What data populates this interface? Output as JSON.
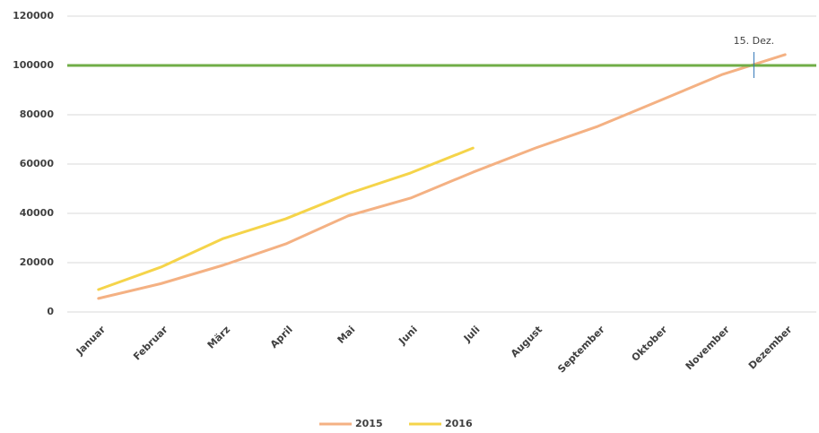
{
  "chart_data": {
    "type": "line",
    "categories": [
      "Januar",
      "Februar",
      "März",
      "April",
      "Mai",
      "Juni",
      "Juli",
      "August",
      "September",
      "Oktober",
      "November",
      "Dezember"
    ],
    "series": [
      {
        "name": "2015",
        "color": "#f4b183",
        "values": [
          5500,
          11500,
          19000,
          27600,
          39000,
          46200,
          56700,
          66500,
          75300,
          85800,
          96400,
          104400
        ]
      },
      {
        "name": "2016",
        "color": "#f5d44a",
        "values": [
          9100,
          18200,
          29800,
          37800,
          48000,
          56400,
          66500,
          null,
          null,
          null,
          null,
          null
        ]
      }
    ],
    "reference_line": {
      "value": 100000,
      "color": "#70ad47"
    },
    "annotation": "15. Dez.",
    "ylim": [
      0,
      120000
    ],
    "yticks": [
      0,
      20000,
      40000,
      60000,
      80000,
      100000,
      120000
    ],
    "grid": true
  }
}
